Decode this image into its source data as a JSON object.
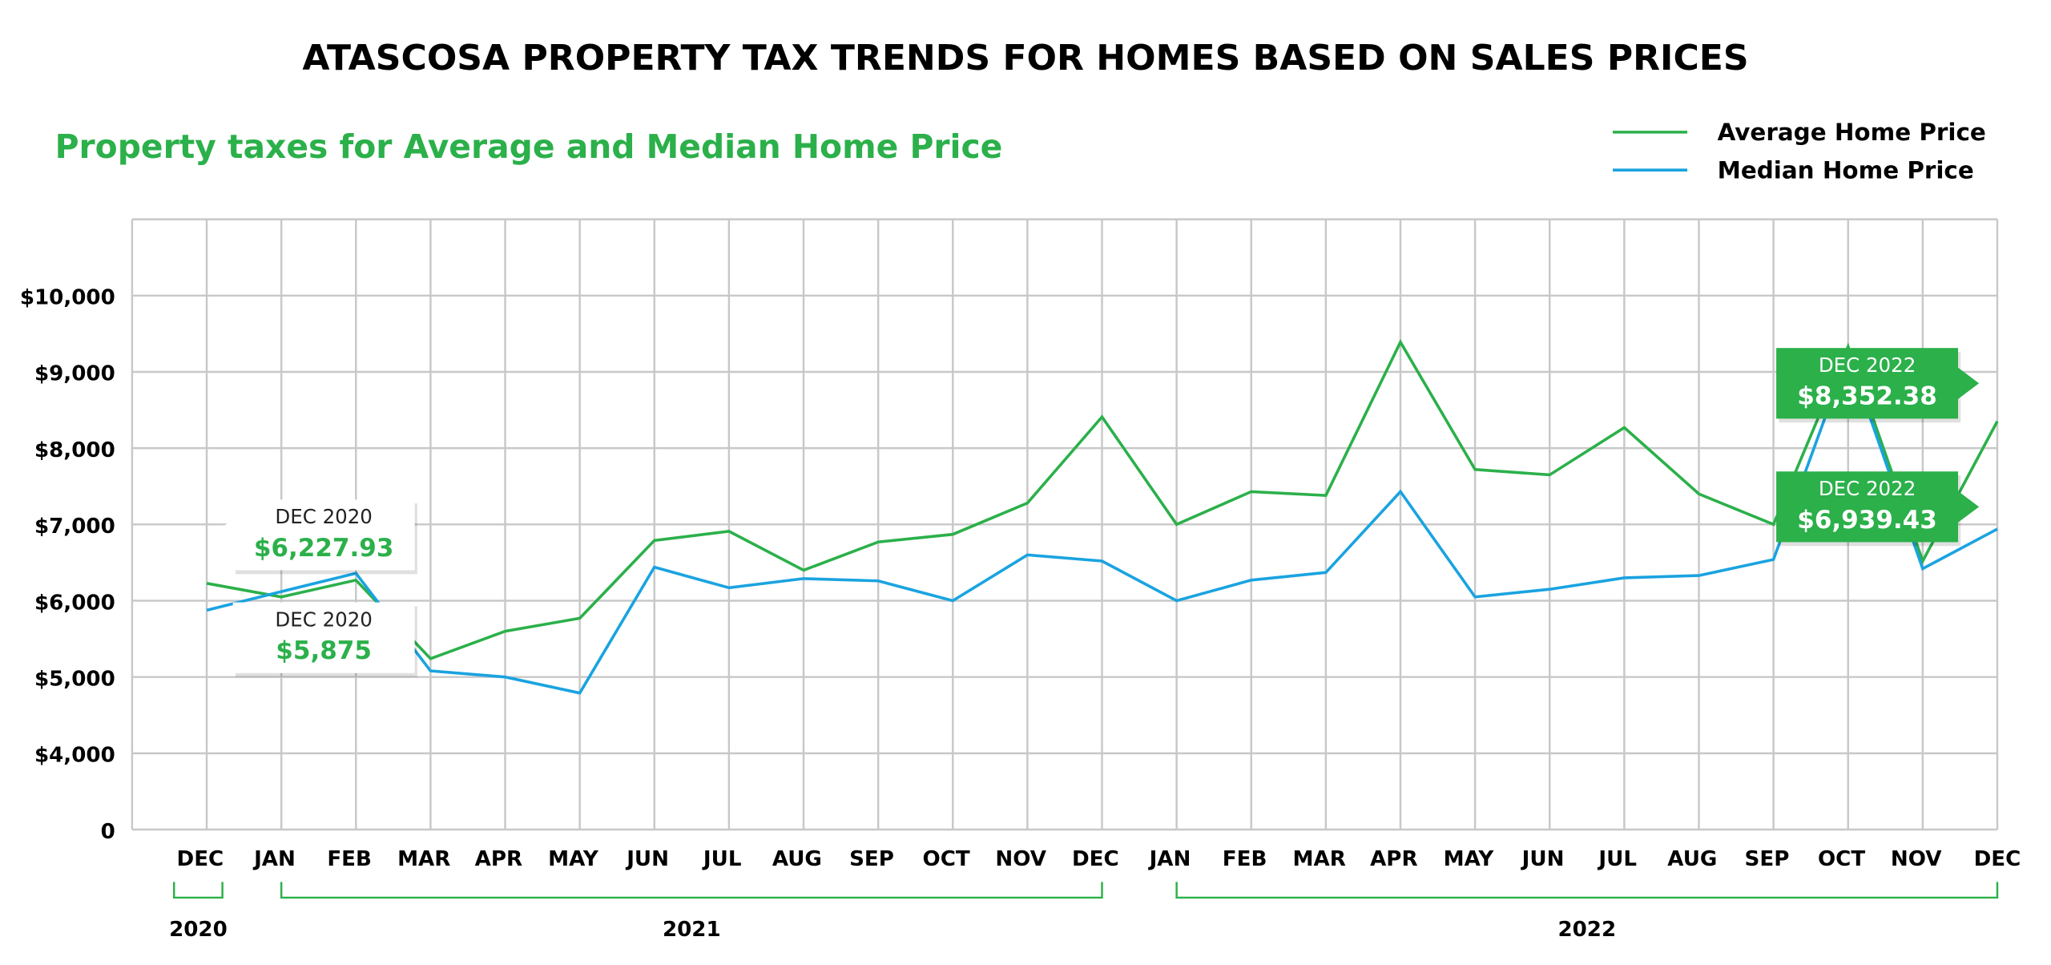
{
  "chart_data": {
    "type": "line",
    "title": "ATASCOSA PROPERTY TAX TRENDS FOR HOMES BASED ON SALES PRICES",
    "subtitle": "Property taxes for Average and Median Home Price",
    "categories": [
      "DEC",
      "JAN",
      "FEB",
      "MAR",
      "APR",
      "MAY",
      "JUN",
      "JUL",
      "AUG",
      "SEP",
      "OCT",
      "NOV",
      "DEC",
      "JAN",
      "FEB",
      "MAR",
      "APR",
      "MAY",
      "JUN",
      "JUL",
      "AUG",
      "SEP",
      "OCT",
      "NOV",
      "DEC"
    ],
    "year_groups": [
      {
        "label": "2020",
        "start": 0,
        "end": 0
      },
      {
        "label": "2021",
        "start": 1,
        "end": 12
      },
      {
        "label": "2022",
        "start": 13,
        "end": 24
      }
    ],
    "series": [
      {
        "name": "Average Home Price",
        "color": "#2bb04a",
        "values": [
          6227.93,
          6050,
          6270,
          5240,
          5600,
          5770,
          6790,
          6910,
          6400,
          6770,
          6870,
          7280,
          8410,
          7000,
          7430,
          7380,
          9390,
          7720,
          7650,
          8270,
          7400,
          7000,
          9330,
          6520,
          8352.38
        ],
        "value_labels": [
          "$6,227.93",
          null,
          null,
          null,
          null,
          null,
          null,
          null,
          null,
          null,
          null,
          null,
          null,
          null,
          null,
          null,
          null,
          null,
          null,
          null,
          null,
          null,
          null,
          null,
          "$8,352.38"
        ],
        "value_label_titles": [
          "DEC 2020",
          null,
          null,
          null,
          null,
          null,
          null,
          null,
          null,
          null,
          null,
          null,
          null,
          null,
          null,
          null,
          null,
          null,
          null,
          null,
          null,
          null,
          null,
          null,
          "DEC 2022"
        ]
      },
      {
        "name": "Median Home Price",
        "color": "#1aa3e0",
        "values": [
          5875,
          6120,
          6360,
          5080,
          5000,
          4790,
          6440,
          6170,
          6290,
          6260,
          6000,
          6600,
          6520,
          6000,
          6270,
          6370,
          7430,
          6050,
          6150,
          6300,
          6330,
          6540,
          9230,
          6420,
          6939.43
        ],
        "value_labels": [
          "$5,875",
          null,
          null,
          null,
          null,
          null,
          null,
          null,
          null,
          null,
          null,
          null,
          null,
          null,
          null,
          null,
          null,
          null,
          null,
          null,
          null,
          null,
          null,
          null,
          "$6,939.43"
        ],
        "value_label_titles": [
          "DEC 2020",
          null,
          null,
          null,
          null,
          null,
          null,
          null,
          null,
          null,
          null,
          null,
          null,
          null,
          null,
          null,
          null,
          null,
          null,
          null,
          null,
          null,
          null,
          null,
          "DEC 2022"
        ]
      }
    ],
    "ylim": [
      0,
      11000
    ],
    "yticks": [
      0,
      {
        "value": 4000,
        "label": "$4,000"
      },
      {
        "value": 5000,
        "label": "$5,000"
      },
      {
        "value": 6000,
        "label": "$6,000"
      },
      {
        "value": 7000,
        "label": "$7,000"
      },
      {
        "value": 8000,
        "label": "$8,000"
      },
      {
        "value": 9000,
        "label": "$9,000"
      },
      {
        "value": 10000,
        "label": "$10,000"
      }
    ],
    "axis_break": true,
    "grid": true,
    "legend": "top-right",
    "bracket_color": "#2bb04a"
  }
}
